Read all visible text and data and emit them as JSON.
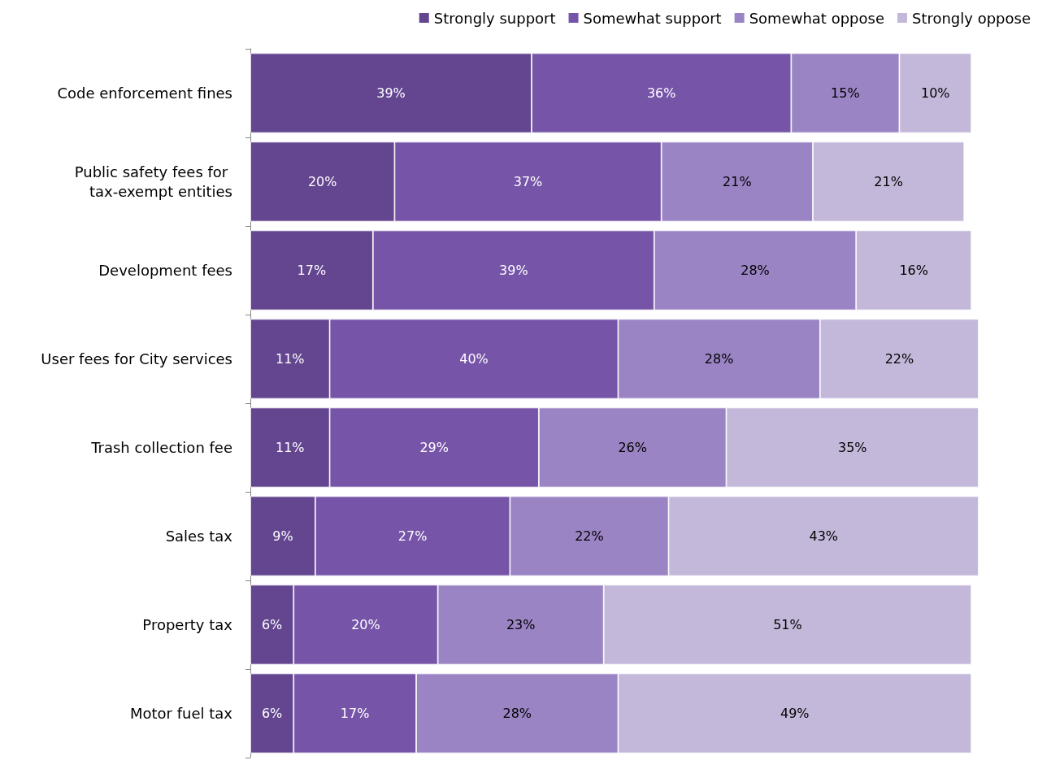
{
  "chart_data": {
    "type": "bar",
    "orientation": "horizontal",
    "stacked": true,
    "legend": "top right",
    "categories": [
      "Code enforcement fines",
      "Public safety fees for tax-exempt entities",
      "Development fees",
      "User fees for City services",
      "Trash collection fee",
      "Sales tax",
      "Property tax",
      "Motor fuel tax"
    ],
    "series": [
      {
        "name": "Strongly support",
        "color": "#634590",
        "values": [
          39,
          20,
          17,
          11,
          11,
          9,
          6,
          6
        ],
        "value_labels": [
          "39%",
          "20%",
          "17%",
          "11%",
          "11%",
          "9%",
          "6%",
          "6%"
        ]
      },
      {
        "name": "Somewhat support",
        "color": "#7654a8",
        "values": [
          36,
          37,
          39,
          40,
          29,
          27,
          20,
          17
        ],
        "value_labels": [
          "36%",
          "37%",
          "39%",
          "40%",
          "29%",
          "27%",
          "20%",
          "17%"
        ]
      },
      {
        "name": "Somewhat oppose",
        "color": "#9a84c4",
        "values": [
          15,
          21,
          28,
          28,
          26,
          22,
          23,
          28
        ],
        "value_labels": [
          "15%",
          "21%",
          "28%",
          "28%",
          "26%",
          "22%",
          "23%",
          "28%"
        ]
      },
      {
        "name": "Strongly oppose",
        "color": "#c3b8da",
        "values": [
          10,
          21,
          16,
          22,
          35,
          43,
          51,
          49
        ],
        "value_labels": [
          "10%",
          "21%",
          "16%",
          "22%",
          "35%",
          "43%",
          "51%",
          "49%"
        ]
      }
    ]
  }
}
